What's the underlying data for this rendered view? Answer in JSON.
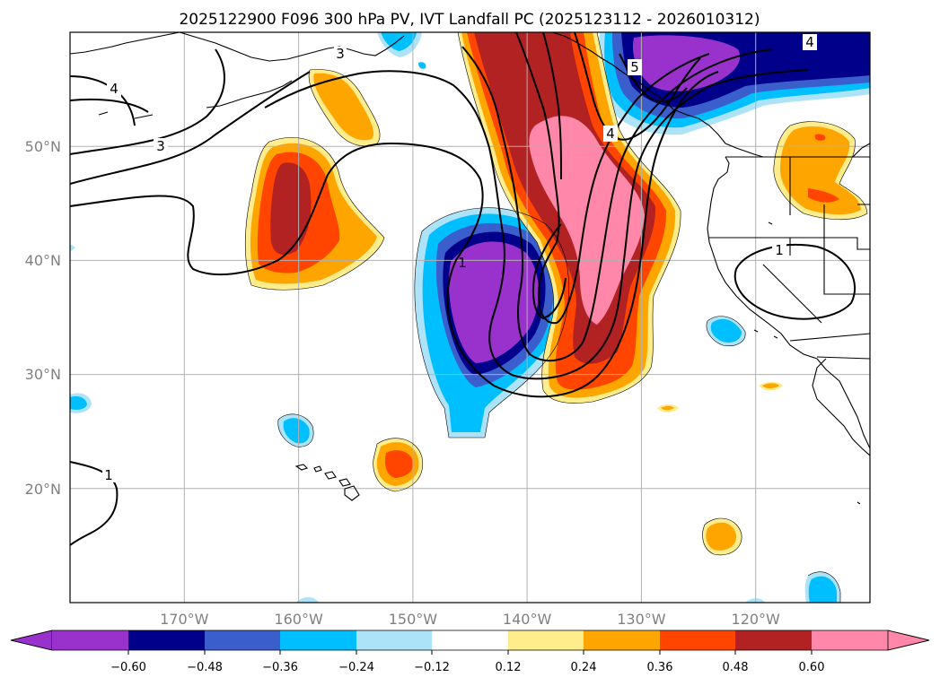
{
  "title": "2025122900 F096 300 hPa PV, IVT Landfall PC (2025123112 - 2026010312)",
  "map": {
    "lon_labels": [
      "170°W",
      "160°W",
      "150°W",
      "140°W",
      "130°W",
      "120°W"
    ],
    "lat_labels": [
      "50°N",
      "40°N",
      "30°N",
      "20°N"
    ]
  },
  "chart_data": {
    "type": "heatmap",
    "title": "2025122900 F096 300 hPa PV, IVT Landfall PC (2025123112 - 2026010312)",
    "lon_range": [
      -180,
      -110
    ],
    "lat_range": [
      10,
      60
    ],
    "projection": "plate-carree",
    "grid": true,
    "shading": {
      "levels": [
        -0.6,
        -0.48,
        -0.36,
        -0.24,
        -0.12,
        0.12,
        0.24,
        0.36,
        0.48,
        0.6
      ],
      "level_labels": [
        "−0.60",
        "−0.48",
        "−0.36",
        "−0.24",
        "−0.12",
        "0.12",
        "0.24",
        "0.36",
        "0.48",
        "0.60"
      ],
      "colors": [
        "#9932CC",
        "#00008B",
        "#3A5FCD",
        "#00BFFF",
        "#ADE3F8",
        "#FFFFFF",
        "#FFEC8B",
        "#FFA500",
        "#FF4500",
        "#B22222",
        "#FF88AA"
      ],
      "colorbar_extend": "both",
      "features": [
        {
          "kind": "low",
          "lon": -143.2,
          "lat": 36.1,
          "peak": -0.75
        },
        {
          "kind": "low",
          "lon": -127.5,
          "lat": 56.2,
          "peak": -0.72
        },
        {
          "kind": "high",
          "lon": -133.0,
          "lat": 46.0,
          "peak": 0.72
        },
        {
          "kind": "high",
          "lon": -162.0,
          "lat": 43.5,
          "peak": 0.52
        },
        {
          "kind": "high",
          "lon": -117.0,
          "lat": 47.5,
          "peak": 0.38
        },
        {
          "kind": "high",
          "lon": -152.0,
          "lat": 22.0,
          "peak": 0.4
        }
      ]
    },
    "pv_contours": {
      "labels": [
        "4",
        "3",
        "4",
        "3",
        "5",
        "4",
        "1",
        "1",
        "1"
      ]
    }
  }
}
